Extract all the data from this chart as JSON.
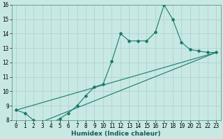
{
  "title": "",
  "xlabel": "Humidex (Indice chaleur)",
  "xlim": [
    -0.5,
    23.5
  ],
  "ylim": [
    8,
    16
  ],
  "xticks": [
    0,
    1,
    2,
    3,
    4,
    5,
    6,
    7,
    8,
    9,
    10,
    11,
    12,
    13,
    14,
    15,
    16,
    17,
    18,
    19,
    20,
    21,
    22,
    23
  ],
  "yticks": [
    8,
    9,
    10,
    11,
    12,
    13,
    14,
    15,
    16
  ],
  "bg_color": "#c8e8e4",
  "grid_color": "#aacfcc",
  "line_color": "#1a7a6e",
  "series1_x": [
    0,
    1,
    2,
    3,
    4,
    5,
    6,
    7,
    8,
    9,
    10,
    11,
    12,
    13,
    14,
    15,
    16,
    17,
    18,
    19,
    20,
    21,
    22,
    23
  ],
  "series1_y": [
    8.7,
    8.5,
    8.0,
    7.9,
    7.8,
    8.1,
    8.5,
    9.0,
    9.7,
    10.3,
    10.5,
    12.1,
    14.0,
    13.5,
    13.5,
    13.5,
    14.1,
    16.0,
    15.0,
    13.4,
    12.9,
    12.8,
    12.7,
    12.7
  ],
  "line1_x": [
    0,
    23
  ],
  "line1_y": [
    8.7,
    12.7
  ],
  "line2_x": [
    3,
    23
  ],
  "line2_y": [
    7.9,
    12.7
  ],
  "tick_fontsize": 5.5,
  "xlabel_fontsize": 6.5
}
